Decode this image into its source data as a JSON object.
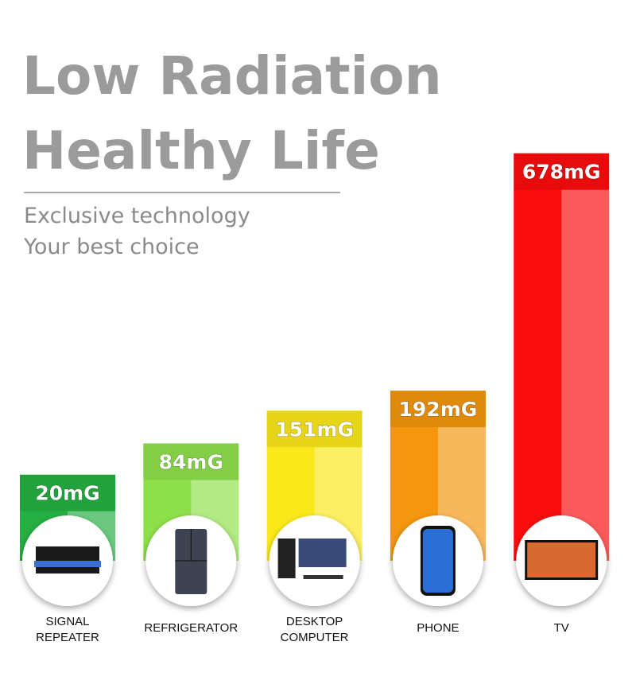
{
  "chart_data": {
    "type": "bar",
    "title": "Low Radiation",
    "subtitle": "Healthy Life",
    "annotations": [
      "Exclusive technology",
      "Your best choice"
    ],
    "categories": [
      "SIGNAL REPEATER",
      "REFRIGERATOR",
      "DESKTOP COMPUTER",
      "PHONE",
      "TV"
    ],
    "values": [
      20,
      84,
      151,
      192,
      678
    ],
    "value_labels": [
      "20mG",
      "84mG",
      "151mG",
      "192mG",
      "678mG"
    ],
    "colors": [
      "#25b043",
      "#8ee04a",
      "#fbe81a",
      "#f4960e",
      "#fb0d0d"
    ]
  }
}
